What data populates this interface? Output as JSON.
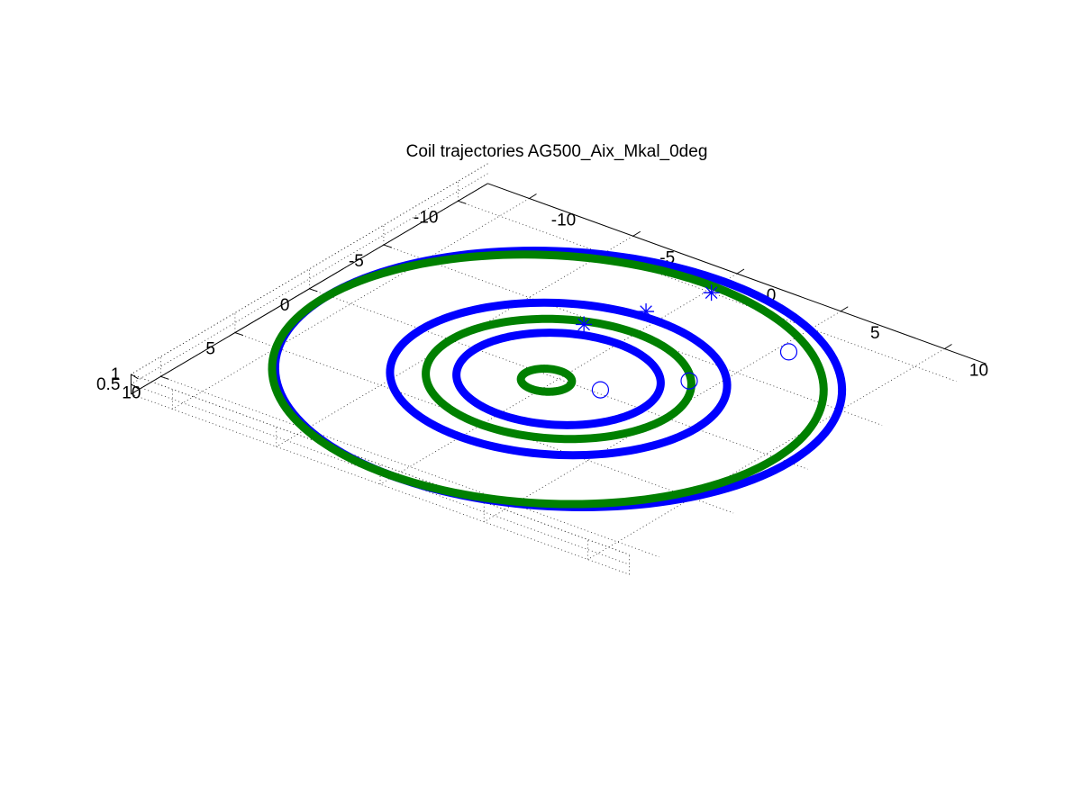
{
  "figure": {
    "title": "Coil trajectories AG500_Aix_Mkal_0deg"
  },
  "chart_data": {
    "type": "line",
    "view": "3d-isometric",
    "title": "Coil trajectories AG500_Aix_Mkal_0deg",
    "xlabel": "",
    "ylabel": "",
    "zlabel": "",
    "xlim": [
      -12,
      12
    ],
    "ylim": [
      -12,
      12
    ],
    "zlim": [
      0,
      1
    ],
    "x_ticks": [
      -10,
      -5,
      0,
      5,
      10
    ],
    "y_ticks": [
      -10,
      -5,
      0,
      5,
      10
    ],
    "z_ticks": [
      0.5,
      1
    ],
    "x_tick_labels": [
      "-10",
      "-5",
      "0",
      "5",
      "10"
    ],
    "y_tick_labels": [
      "-10",
      "-5",
      "0",
      "5",
      "10"
    ],
    "z_tick_labels": [
      "0.5",
      "1"
    ],
    "grid": true,
    "colors": {
      "blue": "#0000ff",
      "green": "#008000",
      "axis": "#000000"
    },
    "series": [
      {
        "color": "blue",
        "style": "thick-ring",
        "rings": [
          {
            "cx": 0,
            "cy": 0,
            "r": 11.1
          },
          {
            "cx": 0,
            "cy": 0,
            "r": 6.6
          },
          {
            "cx": 0,
            "cy": 0,
            "r": 4.0
          }
        ]
      },
      {
        "color": "green",
        "style": "thick-ring",
        "rings": [
          {
            "cx": -0.3,
            "cy": 0.3,
            "r": 10.8
          },
          {
            "cx": 0,
            "cy": 0,
            "r": 5.2
          },
          {
            "cx": -0.3,
            "cy": 0.4,
            "r": 1.0
          }
        ]
      },
      {
        "color": "blue",
        "style": "circle-marker",
        "points": [
          {
            "x": 1.8,
            "y": -0.3
          },
          {
            "x": 4.0,
            "y": -3.2
          },
          {
            "x": 5.5,
            "y": -7.8
          }
        ]
      },
      {
        "color": "blue",
        "style": "star-marker",
        "points": [
          {
            "x": -2.0,
            "y": -4.5
          },
          {
            "x": -0.8,
            "y": -7.0
          },
          {
            "x": 0.2,
            "y": -10.0
          }
        ]
      }
    ]
  }
}
